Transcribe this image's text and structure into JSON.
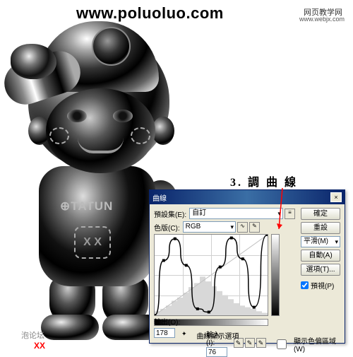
{
  "watermarks": {
    "url": "www.poluoluo.com",
    "cn1": "网页教学网",
    "cn2": "www.webjx.com"
  },
  "mascot": {
    "shirt_text": "⊕TATUN",
    "patch_text": "X X"
  },
  "step": {
    "label": "3. 調 曲 線"
  },
  "dialog": {
    "title": "曲線",
    "preset_label": "預設集(E):",
    "preset_value": "自訂",
    "channel_label": "色版(C):",
    "channel_value": "RGB",
    "buttons": {
      "ok": "確定",
      "cancel": "重設",
      "smooth": "平滑(M)",
      "auto": "自動(A)",
      "options": "選項(T)..."
    },
    "preview_label": "預視(P)",
    "output_label": "輸出(O):",
    "output_value": "178",
    "input_label": "輸入(I):",
    "input_value": "76",
    "show_clipping": "顯示色偏區域(W)",
    "curve_options": "曲線顯示選項",
    "curve": {
      "type": "curve",
      "grid_divisions": 4,
      "background_color": "#ffffff",
      "grid_color": "#d0d0d0",
      "diagonal_color": "#c0c0c0",
      "curve_color": "#000000",
      "histogram_color": "#d8d8d8",
      "curve_points": [
        [
          0.0,
          0.0
        ],
        [
          0.08,
          0.68
        ],
        [
          0.18,
          0.95
        ],
        [
          0.28,
          0.62
        ],
        [
          0.38,
          0.08
        ],
        [
          0.48,
          0.04
        ],
        [
          0.58,
          0.6
        ],
        [
          0.68,
          0.96
        ],
        [
          0.78,
          0.7
        ],
        [
          0.88,
          0.1
        ],
        [
          1.0,
          1.0
        ]
      ],
      "histogram": [
        0.05,
        0.08,
        0.12,
        0.18,
        0.22,
        0.28,
        0.35,
        0.4,
        0.48,
        0.42,
        0.36,
        0.3,
        0.25,
        0.2,
        0.15,
        0.12,
        0.1,
        0.08,
        0.05,
        0.03
      ]
    }
  },
  "bottom": {
    "forum": "泡论坛",
    "mark": "XX"
  }
}
